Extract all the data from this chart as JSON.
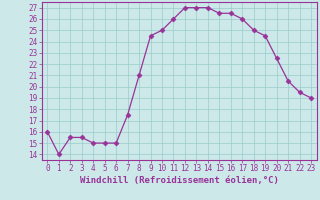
{
  "x": [
    0,
    1,
    2,
    3,
    4,
    5,
    6,
    7,
    8,
    9,
    10,
    11,
    12,
    13,
    14,
    15,
    16,
    17,
    18,
    19,
    20,
    21,
    22,
    23
  ],
  "y": [
    16,
    14,
    15.5,
    15.5,
    15,
    15,
    15,
    17.5,
    21,
    24.5,
    25,
    26,
    27,
    27,
    27,
    26.5,
    26.5,
    26,
    25,
    24.5,
    22.5,
    20.5,
    19.5,
    19
  ],
  "line_color": "#993399",
  "marker": "D",
  "marker_size": 2.5,
  "xlabel": "Windchill (Refroidissement éolien,°C)",
  "xlim": [
    -0.5,
    23.5
  ],
  "ylim": [
    13.5,
    27.5
  ],
  "yticks": [
    14,
    15,
    16,
    17,
    18,
    19,
    20,
    21,
    22,
    23,
    24,
    25,
    26,
    27
  ],
  "xticks": [
    0,
    1,
    2,
    3,
    4,
    5,
    6,
    7,
    8,
    9,
    10,
    11,
    12,
    13,
    14,
    15,
    16,
    17,
    18,
    19,
    20,
    21,
    22,
    23
  ],
  "xtick_labels": [
    "0",
    "1",
    "2",
    "3",
    "4",
    "5",
    "6",
    "7",
    "8",
    "9",
    "10",
    "11",
    "12",
    "13",
    "14",
    "15",
    "16",
    "17",
    "18",
    "19",
    "20",
    "21",
    "22",
    "23"
  ],
  "bg_color": "#cce8e8",
  "grid_color": "#99cccc",
  "tick_fontsize": 5.5,
  "xlabel_fontsize": 6.5
}
